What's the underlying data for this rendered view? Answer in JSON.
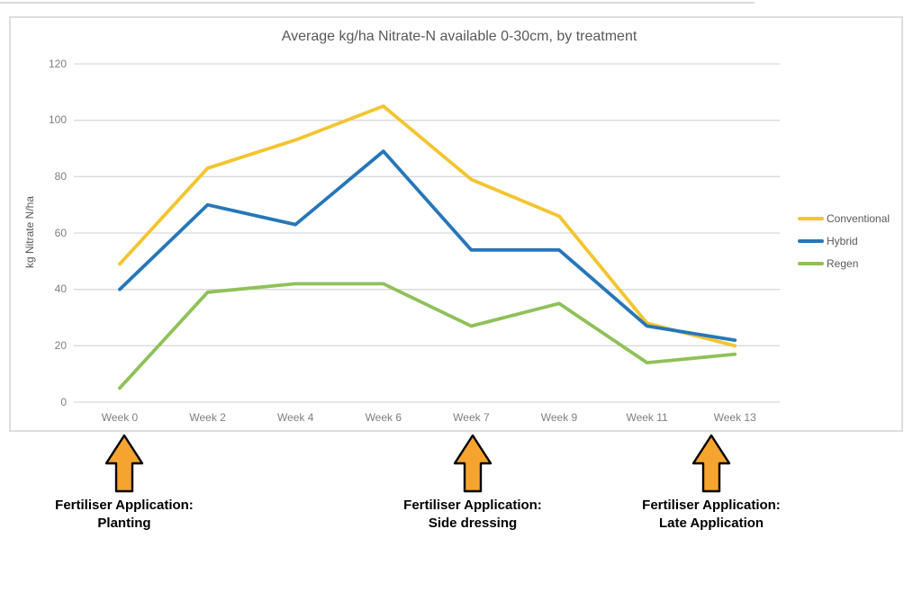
{
  "chart_data": {
    "type": "line",
    "title": "Average kg/ha Nitrate-N available 0-30cm, by treatment",
    "ylabel": "kg Nitrate N/ha",
    "xlabel": "",
    "categories": [
      "Week 0",
      "Week 2",
      "Week 4",
      "Week 6",
      "Week 7",
      "Week 9",
      "Week 11",
      "Week 13"
    ],
    "yticks": [
      0,
      20,
      40,
      60,
      80,
      100,
      120
    ],
    "ylim": [
      0,
      120
    ],
    "grid": "horizontal",
    "legend_position": "right",
    "series": [
      {
        "name": "Conventional",
        "color": "#F3C52F",
        "values": [
          49,
          83,
          93,
          105,
          79,
          66,
          28,
          20
        ]
      },
      {
        "name": "Hybrid",
        "color": "#2776B9",
        "values": [
          40,
          70,
          63,
          89,
          54,
          54,
          27,
          22
        ]
      },
      {
        "name": "Regen",
        "color": "#8FC159",
        "values": [
          5,
          39,
          42,
          42,
          27,
          35,
          14,
          17
        ]
      }
    ]
  },
  "annotations": [
    {
      "line1": "Fertiliser Application:",
      "line2": "Planting"
    },
    {
      "line1": "Fertiliser Application:",
      "line2": "Side dressing"
    },
    {
      "line1": "Fertiliser Application:",
      "line2": "Late Application"
    }
  ],
  "colors": {
    "arrow_fill": "#F6A430",
    "arrow_outline": "#000000",
    "grid": "#D9D9D9",
    "axis_text": "#7F7F7F",
    "title_text": "#595959",
    "frame_border": "#DEDEDE"
  }
}
